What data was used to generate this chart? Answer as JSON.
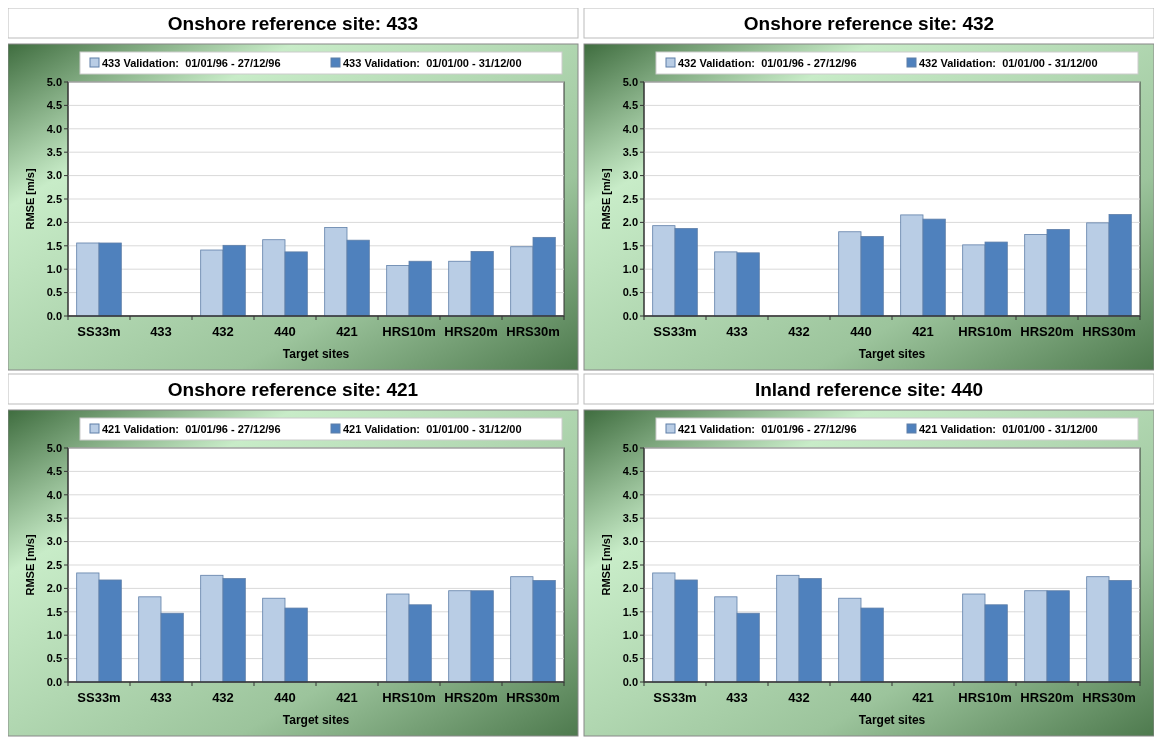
{
  "chart_data": [
    {
      "type": "bar",
      "title": "Onshore reference site: 433",
      "xlabel": "Target sites",
      "ylabel": "RMSE [m/s]",
      "categories": [
        "SS33m",
        "433",
        "432",
        "440",
        "421",
        "HRS10m",
        "HRS20m",
        "HRS30m"
      ],
      "series": [
        {
          "name": "433 Validation:  01/01/96 - 27/12/96",
          "color": "#b9cde5",
          "values": [
            1.56,
            null,
            1.41,
            1.63,
            1.89,
            1.08,
            1.17,
            1.48
          ]
        },
        {
          "name": "433 Validation:  01/01/00 - 31/12/00",
          "color": "#4f81bd",
          "values": [
            1.56,
            null,
            1.51,
            1.37,
            1.62,
            1.17,
            1.38,
            1.68
          ]
        }
      ],
      "ylim": [
        0,
        5
      ],
      "yticks": [
        {
          "value": 0,
          "label": "0.0"
        },
        {
          "value": 0.5,
          "label": "0.5"
        },
        {
          "value": 1,
          "label": "1.0"
        },
        {
          "value": 1.5,
          "label": "1.5"
        },
        {
          "value": 2,
          "label": "2.0"
        },
        {
          "value": 2.5,
          "label": "2.5"
        },
        {
          "value": 3,
          "label": "3.0"
        },
        {
          "value": 3.5,
          "label": "3.5"
        },
        {
          "value": 4,
          "label": "4.0"
        },
        {
          "value": 4.5,
          "label": "4.5"
        },
        {
          "value": 5,
          "label": "5.0"
        }
      ],
      "grid": "y",
      "legend": "top"
    },
    {
      "type": "bar",
      "title": "Onshore reference site: 432",
      "xlabel": "Target sites",
      "ylabel": "RMSE [m/s]",
      "categories": [
        "SS33m",
        "433",
        "432",
        "440",
        "421",
        "HRS10m",
        "HRS20m",
        "HRS30m"
      ],
      "series": [
        {
          "name": "432 Validation:  01/01/96 - 27/12/96",
          "color": "#b9cde5",
          "values": [
            1.93,
            1.37,
            null,
            1.8,
            2.16,
            1.52,
            1.74,
            1.99
          ]
        },
        {
          "name": "432 Validation:  01/01/00 - 31/12/00",
          "color": "#4f81bd",
          "values": [
            1.87,
            1.35,
            null,
            1.7,
            2.07,
            1.58,
            1.85,
            2.17
          ]
        }
      ],
      "ylim": [
        0,
        5
      ],
      "yticks": [
        {
          "value": 0,
          "label": "0.0"
        },
        {
          "value": 0.5,
          "label": "0.5"
        },
        {
          "value": 1,
          "label": "1.0"
        },
        {
          "value": 1.5,
          "label": "1.5"
        },
        {
          "value": 2,
          "label": "2.0"
        },
        {
          "value": 2.5,
          "label": "2.5"
        },
        {
          "value": 3,
          "label": "3.0"
        },
        {
          "value": 3.5,
          "label": "3.5"
        },
        {
          "value": 4,
          "label": "4.0"
        },
        {
          "value": 4.5,
          "label": "4.5"
        },
        {
          "value": 5,
          "label": "5.0"
        }
      ],
      "grid": "y",
      "legend": "top"
    },
    {
      "type": "bar",
      "title": "Onshore reference site: 421",
      "xlabel": "Target sites",
      "ylabel": "RMSE [m/s]",
      "categories": [
        "SS33m",
        "433",
        "432",
        "440",
        "421",
        "HRS10m",
        "HRS20m",
        "HRS30m"
      ],
      "series": [
        {
          "name": "421 Validation:  01/01/96 - 27/12/96",
          "color": "#b9cde5",
          "values": [
            2.33,
            1.82,
            2.28,
            1.79,
            null,
            1.88,
            1.95,
            2.25
          ]
        },
        {
          "name": "421 Validation:  01/01/00 - 31/12/00",
          "color": "#4f81bd",
          "values": [
            2.18,
            1.47,
            2.21,
            1.58,
            null,
            1.65,
            1.95,
            2.17
          ]
        }
      ],
      "ylim": [
        0,
        5
      ],
      "yticks": [
        {
          "value": 0,
          "label": "0.0"
        },
        {
          "value": 0.5,
          "label": "0.5"
        },
        {
          "value": 1,
          "label": "1.0"
        },
        {
          "value": 1.5,
          "label": "1.5"
        },
        {
          "value": 2,
          "label": "2.0"
        },
        {
          "value": 2.5,
          "label": "2.5"
        },
        {
          "value": 3,
          "label": "3.0"
        },
        {
          "value": 3.5,
          "label": "3.5"
        },
        {
          "value": 4,
          "label": "4.0"
        },
        {
          "value": 4.5,
          "label": "4.5"
        },
        {
          "value": 5,
          "label": "5.0"
        }
      ],
      "grid": "y",
      "legend": "top"
    },
    {
      "type": "bar",
      "title": "Inland reference site: 440",
      "xlabel": "Target sites",
      "ylabel": "RMSE [m/s]",
      "categories": [
        "SS33m",
        "433",
        "432",
        "440",
        "421",
        "HRS10m",
        "HRS20m",
        "HRS30m"
      ],
      "series": [
        {
          "name": "421 Validation:  01/01/96 - 27/12/96",
          "color": "#b9cde5",
          "values": [
            2.33,
            1.82,
            2.28,
            1.79,
            null,
            1.88,
            1.95,
            2.25
          ]
        },
        {
          "name": "421 Validation:  01/01/00 - 31/12/00",
          "color": "#4f81bd",
          "values": [
            2.18,
            1.47,
            2.21,
            1.58,
            null,
            1.65,
            1.95,
            2.17
          ]
        }
      ],
      "ylim": [
        0,
        5
      ],
      "yticks": [
        {
          "value": 0,
          "label": "0.0"
        },
        {
          "value": 0.5,
          "label": "0.5"
        },
        {
          "value": 1,
          "label": "1.0"
        },
        {
          "value": 1.5,
          "label": "1.5"
        },
        {
          "value": 2,
          "label": "2.0"
        },
        {
          "value": 2.5,
          "label": "2.5"
        },
        {
          "value": 3,
          "label": "3.0"
        },
        {
          "value": 3.5,
          "label": "3.5"
        },
        {
          "value": 4,
          "label": "4.0"
        },
        {
          "value": 4.5,
          "label": "4.5"
        },
        {
          "value": 5,
          "label": "5.0"
        }
      ],
      "grid": "y",
      "legend": "top"
    }
  ]
}
